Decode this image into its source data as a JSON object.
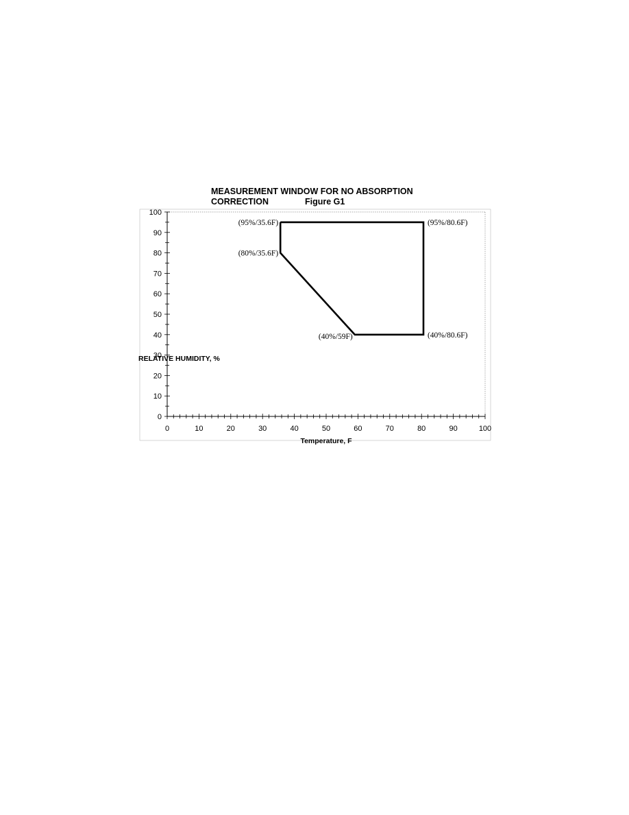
{
  "chart_data": {
    "type": "line",
    "title_line1": "MEASUREMENT WINDOW FOR NO ABSORPTION",
    "title_line2": "CORRECTION",
    "figure_label": "Figure G1",
    "xlabel": "Temperature, F",
    "ylabel": "RELATIVE HUMIDITY, %",
    "xlim": [
      0,
      100
    ],
    "ylim": [
      0,
      100
    ],
    "xticks": [
      "0",
      "10",
      "20",
      "30",
      "40",
      "50",
      "60",
      "70",
      "80",
      "90",
      "100"
    ],
    "yticks": [
      "0",
      "10",
      "20",
      "30",
      "40",
      "50",
      "60",
      "70",
      "80",
      "90",
      "100"
    ],
    "grid": false,
    "legend": "none",
    "series": [
      {
        "points": [
          {
            "x": 35.6,
            "y": 95
          },
          {
            "x": 80.6,
            "y": 95
          },
          {
            "x": 80.6,
            "y": 40
          },
          {
            "x": 59,
            "y": 40
          },
          {
            "x": 35.6,
            "y": 80
          },
          {
            "x": 35.6,
            "y": 95
          }
        ],
        "color": "#000000"
      }
    ],
    "annotations": [
      {
        "text": "(95%/35.6F)",
        "x": 35.6,
        "y": 95,
        "anchor": "end"
      },
      {
        "text": "(95%/80.6F)",
        "x": 80.6,
        "y": 95,
        "anchor": "start"
      },
      {
        "text": "(80%/35.6F)",
        "x": 35.6,
        "y": 80,
        "anchor": "end"
      },
      {
        "text": "(40%/59F)",
        "x": 59,
        "y": 40,
        "anchor": "end"
      },
      {
        "text": "(40%/80.6F)",
        "x": 80.6,
        "y": 40,
        "anchor": "start"
      }
    ]
  }
}
